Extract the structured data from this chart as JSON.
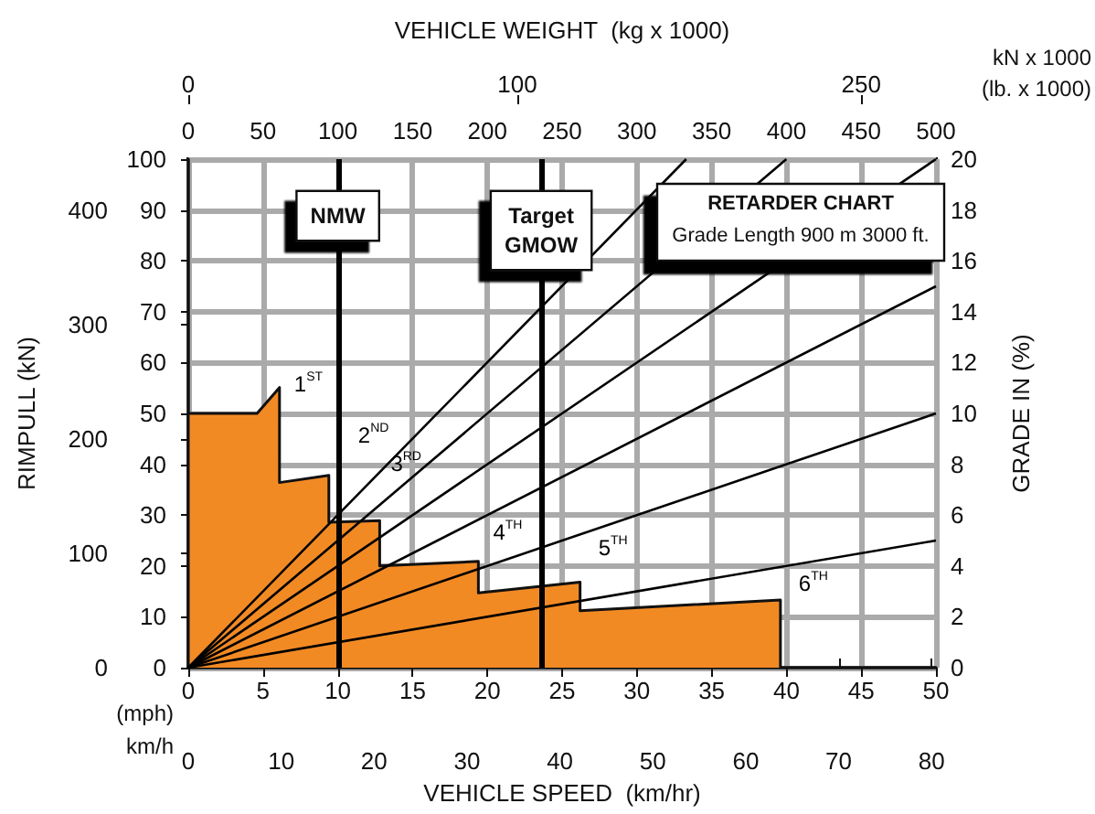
{
  "chart_data": {
    "type": "line",
    "title": "RETARDER CHART",
    "subtitle": "Grade Length 900 m 3000 ft.",
    "xlabel": "VEHICLE SPEED  (km/hr)",
    "x2label": "VEHICLE WEIGHT  (kg x 1000)",
    "y3label": "RIMPULL (kN)",
    "y2label": "GRADE IN (%)",
    "xlim": [
      0,
      50
    ],
    "xticks": [
      0,
      5,
      10,
      15,
      20,
      25,
      30,
      35,
      40,
      45,
      50
    ],
    "x2lim": [
      0,
      500
    ],
    "x2ticks": [
      0,
      50,
      100,
      150,
      200,
      250,
      300,
      350,
      400,
      450,
      500
    ],
    "ylim": [
      0,
      100
    ],
    "yticks": [
      0,
      10,
      20,
      30,
      40,
      50,
      60,
      70,
      80,
      90,
      100
    ],
    "y3lim": [
      0,
      444.8
    ],
    "y3ticks": [
      0,
      100,
      200,
      300,
      400
    ],
    "y2lim": [
      0,
      20
    ],
    "y2ticks": [
      0,
      2,
      4,
      6,
      8,
      10,
      12,
      14,
      16,
      18,
      20
    ],
    "grid": true,
    "series": [
      {
        "type": "area",
        "color": "#f28a24",
        "x": [
          0,
          0,
          4.6,
          6.1,
          6.1,
          9.4,
          9.4,
          12.8,
          12.8,
          19.4,
          19.4,
          26.2,
          26.2,
          39.6,
          39.6
        ],
        "values": [
          0,
          50,
          50,
          55.1,
          36.4,
          37.8,
          28.6,
          28.9,
          20,
          20.9,
          14.7,
          16.8,
          11.2,
          13.3,
          0
        ]
      },
      {
        "color": "#000000",
        "x": [
          0,
          33.3
        ],
        "values": [
          0,
          100
        ]
      },
      {
        "color": "#000000",
        "x": [
          0,
          40
        ],
        "values": [
          0,
          100
        ]
      },
      {
        "color": "#000000",
        "x": [
          0,
          50
        ],
        "values": [
          0,
          100
        ]
      },
      {
        "color": "#000000",
        "x": [
          0,
          50
        ],
        "values": [
          0,
          75
        ]
      },
      {
        "color": "#000000",
        "x": [
          0,
          50
        ],
        "values": [
          0,
          50
        ]
      },
      {
        "color": "#000000",
        "x": [
          0,
          50
        ],
        "values": [
          0,
          25
        ]
      }
    ],
    "ref_lines": [
      {
        "axis": "x",
        "value": 10,
        "label": "NMW",
        "color": "#000000"
      },
      {
        "axis": "x",
        "value": 23.6,
        "label": "Target\nGMOW",
        "color": "#000000"
      }
    ],
    "annotations": [
      "(mph)",
      "km/h",
      "kN x 1000\n(lb. x 1000)",
      "0",
      "10",
      "20",
      "30",
      "40",
      "50",
      "60",
      "70",
      "80",
      "0",
      "100",
      "250",
      {
        "text": "1$^{ST}$",
        "x": 6.1,
        "y": 55.1
      },
      {
        "text": "2$^{ND}$",
        "x": 9.4,
        "y": 37.8
      },
      {
        "text": "3$^{RD}$",
        "x": 12.8,
        "y": 28.9
      },
      {
        "text": "4$^{TH}$",
        "x": 19.4,
        "y": 20.9
      },
      {
        "text": "5$^{TH}$",
        "x": 26.2,
        "y": 16.8
      },
      {
        "text": "6$^{TH}$",
        "x": 39.6,
        "y": 13.3
      }
    ]
  }
}
